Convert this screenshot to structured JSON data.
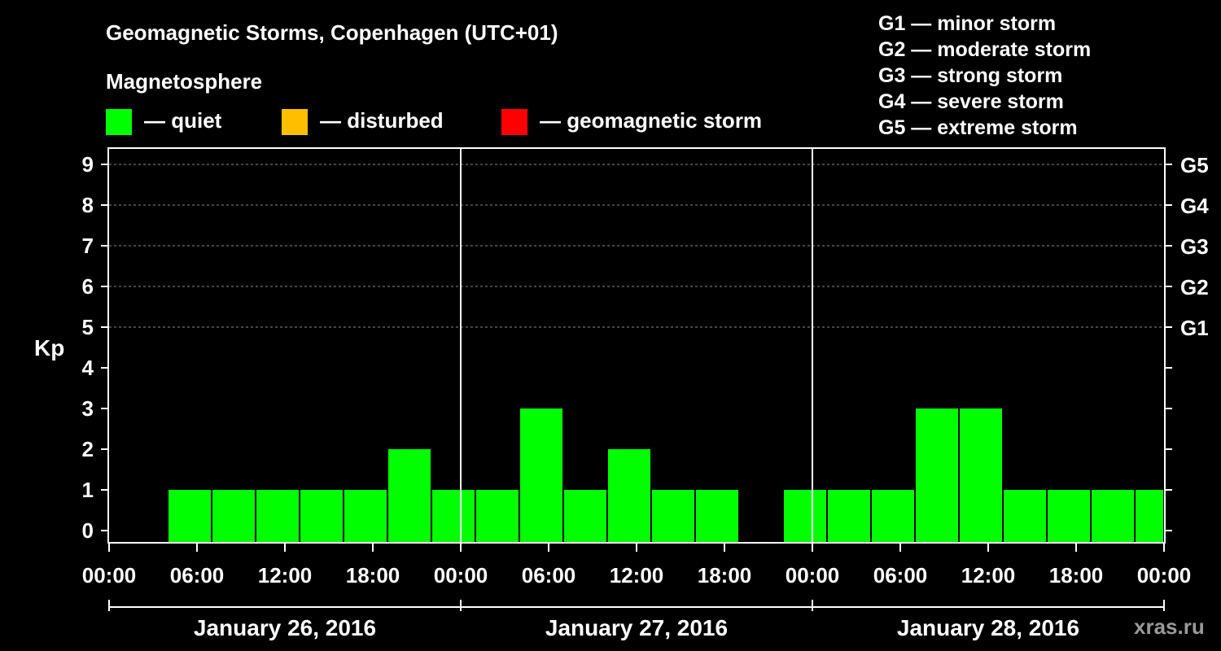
{
  "header": {
    "title": "Geomagnetic Storms, Copenhagen (UTC+01)",
    "subtitle": "Magnetosphere",
    "watermark": "xras.ru"
  },
  "legend": {
    "items": [
      {
        "label": "— quiet",
        "color": "#00ff00"
      },
      {
        "label": "— disturbed",
        "color": "#ffbf00"
      },
      {
        "label": "— geomagnetic storm",
        "color": "#ff0000"
      }
    ]
  },
  "storm_scale": [
    "G1 — minor storm",
    "G2 — moderate storm",
    "G3 — strong storm",
    "G4 — severe storm",
    "G5 — extreme storm"
  ],
  "chart_data": {
    "type": "bar",
    "title": "Geomagnetic Storms, Copenhagen (UTC+01)",
    "ylabel": "Kp",
    "ylim": [
      0,
      9
    ],
    "yticks": [
      0,
      1,
      2,
      3,
      4,
      5,
      6,
      7,
      8,
      9
    ],
    "right_axis": [
      {
        "value": 5,
        "label": "G1"
      },
      {
        "value": 6,
        "label": "G2"
      },
      {
        "value": 7,
        "label": "G3"
      },
      {
        "value": 8,
        "label": "G4"
      },
      {
        "value": 9,
        "label": "G5"
      }
    ],
    "grid": "dashed horizontal at 5-9",
    "x_start": "2016-01-26 00:00",
    "x_end": "2016-01-29 00:00",
    "xtick_labels": [
      "00:00",
      "06:00",
      "12:00",
      "18:00",
      "00:00",
      "06:00",
      "12:00",
      "18:00",
      "00:00",
      "06:00",
      "12:00",
      "18:00",
      "00:00"
    ],
    "days": [
      "January 26, 2016",
      "January 27, 2016",
      "January 28, 2016"
    ],
    "bars": [
      {
        "start": "2016-01-26 04:00",
        "end": "2016-01-26 07:00",
        "kp": 1
      },
      {
        "start": "2016-01-26 07:00",
        "end": "2016-01-26 10:00",
        "kp": 1
      },
      {
        "start": "2016-01-26 10:00",
        "end": "2016-01-26 13:00",
        "kp": 1
      },
      {
        "start": "2016-01-26 13:00",
        "end": "2016-01-26 16:00",
        "kp": 1
      },
      {
        "start": "2016-01-26 16:00",
        "end": "2016-01-26 19:00",
        "kp": 1
      },
      {
        "start": "2016-01-26 19:00",
        "end": "2016-01-26 22:00",
        "kp": 2
      },
      {
        "start": "2016-01-26 22:00",
        "end": "2016-01-27 01:00",
        "kp": 1
      },
      {
        "start": "2016-01-27 01:00",
        "end": "2016-01-27 04:00",
        "kp": 1
      },
      {
        "start": "2016-01-27 04:00",
        "end": "2016-01-27 07:00",
        "kp": 3
      },
      {
        "start": "2016-01-27 07:00",
        "end": "2016-01-27 10:00",
        "kp": 1
      },
      {
        "start": "2016-01-27 10:00",
        "end": "2016-01-27 13:00",
        "kp": 2
      },
      {
        "start": "2016-01-27 13:00",
        "end": "2016-01-27 16:00",
        "kp": 1
      },
      {
        "start": "2016-01-27 16:00",
        "end": "2016-01-27 19:00",
        "kp": 1
      },
      {
        "start": "2016-01-27 22:00",
        "end": "2016-01-28 01:00",
        "kp": 1
      },
      {
        "start": "2016-01-28 01:00",
        "end": "2016-01-28 04:00",
        "kp": 1
      },
      {
        "start": "2016-01-28 04:00",
        "end": "2016-01-28 07:00",
        "kp": 1
      },
      {
        "start": "2016-01-28 07:00",
        "end": "2016-01-28 10:00",
        "kp": 3
      },
      {
        "start": "2016-01-28 10:00",
        "end": "2016-01-28 13:00",
        "kp": 3
      },
      {
        "start": "2016-01-28 13:00",
        "end": "2016-01-28 16:00",
        "kp": 1
      },
      {
        "start": "2016-01-28 16:00",
        "end": "2016-01-28 19:00",
        "kp": 1
      },
      {
        "start": "2016-01-28 19:00",
        "end": "2016-01-28 22:00",
        "kp": 1
      },
      {
        "start": "2016-01-28 22:00",
        "end": "2016-01-29 00:00",
        "kp": 1
      }
    ]
  }
}
